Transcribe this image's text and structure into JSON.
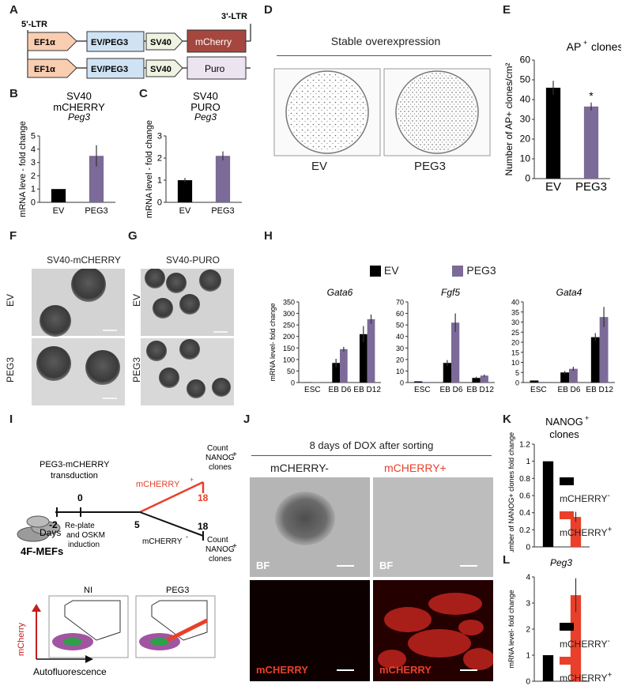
{
  "panel_letters": {
    "A": "A",
    "B": "B",
    "C": "C",
    "D": "D",
    "E": "E",
    "F": "F",
    "G": "G",
    "H": "H",
    "I": "I",
    "J": "J",
    "K": "K",
    "L": "L"
  },
  "construct": {
    "ltr5": "5'-LTR",
    "ltr3": "3'-LTR",
    "promoter": "EF1α",
    "insert": "EV/PEG3",
    "sv40": "SV40",
    "reporter1": "mCherry",
    "reporter2": "Puro",
    "colors": {
      "ef1a": "#f9cdb0",
      "insert": "#cfe3f4",
      "sv40": "#eef3e2",
      "mcherry": "#a5473f",
      "puro": "#ece5f1"
    }
  },
  "panelD": {
    "title": "Stable overexpression",
    "labels": [
      "EV",
      "PEG3"
    ]
  },
  "panelF": {
    "title": "SV40-mCHERRY",
    "rows": [
      "EV",
      "PEG3"
    ]
  },
  "panelG": {
    "title": "SV40-PURO",
    "rows": [
      "EV",
      "PEG3"
    ]
  },
  "panelI": {
    "transduction": "PEG3-mCHERRY transduction",
    "days": "Days",
    "day_m2": "-2",
    "day_0": "0",
    "day_5": "5",
    "day_18a": "18",
    "day_18b": "18",
    "replate": "Re-plate and OSKM induction",
    "pos": "mCHERRY",
    "neg": "mCHERRY",
    "sup_pos": "+",
    "sup_neg": "-",
    "count": "Count NANOG clones",
    "count_sup": "+",
    "mefs": "4F-MEFs",
    "flow_ni": "NI",
    "flow_peg3": "PEG3",
    "flow_y": "mCherry",
    "flow_x": "Autofluorescence",
    "colors": {
      "red": "#e8402a"
    }
  },
  "panelJ": {
    "title": "8 days of DOX after sorting",
    "col_neg": "mCHERRY-",
    "col_pos": "mCHERRY+",
    "bf": "BF",
    "mch": "mCHERRY"
  },
  "legends": {
    "ev": "EV",
    "peg3": "PEG3",
    "neg": "mCHERRY",
    "neg_sup": "-",
    "pos": "mCHERRY",
    "pos_sup": "+"
  },
  "colors": {
    "black": "#000000",
    "purple": "#7c6a98",
    "red": "#e8402a",
    "error": "#333333"
  },
  "chart_data": [
    {
      "id": "B",
      "type": "bar",
      "title": "SV40 mCHERRY",
      "gene": "Peg3",
      "ylabel": "mRNA leve - fold change",
      "categories": [
        "EV",
        "PEG3"
      ],
      "values": [
        1,
        3.5
      ],
      "errors": [
        0,
        0.8
      ],
      "ylim": [
        0,
        5
      ],
      "yticks": [
        "0",
        "1",
        "2",
        "3",
        "4",
        "5"
      ],
      "colors": [
        "#000000",
        "#7c6a98"
      ]
    },
    {
      "id": "C",
      "type": "bar",
      "title": "SV40 PURO",
      "gene": "Peg3",
      "ylabel": "mRNA level - fold change",
      "categories": [
        "EV",
        "PEG3"
      ],
      "values": [
        1,
        2.1
      ],
      "errors": [
        0.1,
        0.2
      ],
      "ylim": [
        0,
        3
      ],
      "yticks": [
        "0",
        "1",
        "2",
        "3"
      ],
      "colors": [
        "#000000",
        "#7c6a98"
      ]
    },
    {
      "id": "E",
      "type": "bar",
      "title": "AP",
      "title_sup": "+",
      "title_rest": "clones",
      "ylabel": "Number of AP+ clones/cm²",
      "categories": [
        "EV",
        "PEG3"
      ],
      "values": [
        46,
        36.5
      ],
      "errors": [
        3.5,
        2
      ],
      "ylim": [
        0,
        60
      ],
      "yticks": [
        "0",
        "10",
        "20",
        "30",
        "40",
        "50",
        "60"
      ],
      "annotation": "*",
      "colors": [
        "#000000",
        "#7c6a98"
      ]
    },
    {
      "id": "H1",
      "type": "bar",
      "gene": "Gata6",
      "ylabel": "mRNA level- fold change",
      "categories": [
        "ESC",
        "EB D6",
        "EB D12"
      ],
      "ylim": [
        0,
        350
      ],
      "yticks": [
        "0",
        "50",
        "100",
        "150",
        "200",
        "250",
        "300",
        "350"
      ],
      "series": [
        {
          "name": "EV",
          "values": [
            1,
            85,
            210
          ],
          "errors": [
            0,
            18,
            35
          ]
        },
        {
          "name": "PEG3",
          "values": [
            1,
            145,
            275
          ],
          "errors": [
            0,
            10,
            20
          ]
        }
      ]
    },
    {
      "id": "H2",
      "type": "bar",
      "gene": "Fgf5",
      "categories": [
        "ESC",
        "EB D6",
        "EB D12"
      ],
      "ylim": [
        0,
        70
      ],
      "yticks": [
        "0",
        "10",
        "20",
        "30",
        "40",
        "50",
        "60",
        "70"
      ],
      "series": [
        {
          "name": "EV",
          "values": [
            1,
            17,
            4
          ],
          "errors": [
            0,
            2.5,
            1
          ]
        },
        {
          "name": "PEG3",
          "values": [
            0.5,
            52,
            6
          ],
          "errors": [
            0,
            8,
            1
          ]
        }
      ]
    },
    {
      "id": "H3",
      "type": "bar",
      "gene": "Gata4",
      "categories": [
        "ESC",
        "EB D6",
        "EB D12"
      ],
      "ylim": [
        0,
        40
      ],
      "yticks": [
        "0",
        "5",
        "10",
        "15",
        "20",
        "25",
        "30",
        "35",
        "40"
      ],
      "series": [
        {
          "name": "EV",
          "values": [
            1,
            5,
            22.5
          ],
          "errors": [
            0,
            0.7,
            2
          ]
        },
        {
          "name": "PEG3",
          "values": [
            0.3,
            6.8,
            32.5
          ],
          "errors": [
            0,
            1,
            5
          ]
        }
      ]
    },
    {
      "id": "K",
      "type": "bar",
      "title": "NANOG",
      "title_sup": "+",
      "title2": "clones",
      "ylabel": "Number of NANOG+ clones fold change",
      "categories": [
        "mCHERRY-",
        "mCHERRY+"
      ],
      "values": [
        1,
        0.35
      ],
      "errors": [
        0,
        0.06
      ],
      "ylim": [
        0,
        1.2
      ],
      "yticks": [
        "0",
        "0.2",
        "0.4",
        "0.6",
        "0.8",
        "1",
        "1.2"
      ],
      "colors": [
        "#000000",
        "#e8402a"
      ]
    },
    {
      "id": "L",
      "type": "bar",
      "gene": "Peg3",
      "ylabel": "mRNA level- fold change",
      "categories": [
        "mCHERRY-",
        "mCHERRY+"
      ],
      "values": [
        1,
        3.3
      ],
      "errors": [
        0,
        0.65
      ],
      "ylim": [
        0,
        4
      ],
      "yticks": [
        "0",
        "1",
        "2",
        "3",
        "4"
      ],
      "colors": [
        "#000000",
        "#e8402a"
      ]
    }
  ]
}
